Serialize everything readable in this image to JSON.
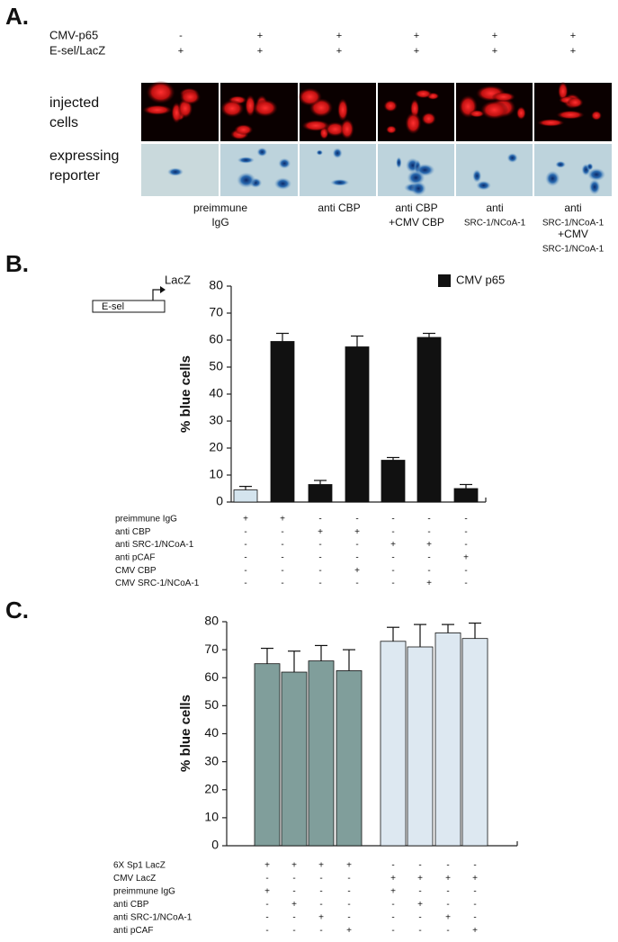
{
  "panel_a": {
    "label": "A.",
    "treatments": [
      {
        "name": "CMV-p65",
        "signs": [
          "-",
          "+",
          "+",
          "+",
          "+",
          "+"
        ]
      },
      {
        "name": "E-sel/LacZ",
        "signs": [
          "+",
          "+",
          "+",
          "+",
          "+",
          "+"
        ]
      }
    ],
    "row_labels": [
      [
        "injected",
        "cells"
      ],
      [
        "expressing",
        "reporter"
      ]
    ],
    "captions": [
      [
        "preimmune",
        "IgG"
      ],
      [
        "anti CBP"
      ],
      [
        "anti CBP",
        "+CMV CBP"
      ],
      [
        "anti",
        "SRC-1/NCoA-1"
      ],
      [
        "anti",
        "SRC-1/NCoA-1",
        "+CMV",
        "SRC-1/NCoA-1"
      ]
    ]
  },
  "chart_data": [
    {
      "type": "bar",
      "panel_label": "B.",
      "promoter": "E-sel",
      "reporter": "LacZ",
      "ylabel": "% blue cells",
      "values": [
        4.5,
        59.5,
        6.5,
        57.5,
        15.5,
        61,
        5
      ],
      "errors": [
        1.3,
        3,
        1.5,
        4,
        1,
        1.5,
        1.5
      ],
      "colors": [
        "#d4e4ee",
        "#111111",
        "#111111",
        "#111111",
        "#111111",
        "#111111",
        "#111111"
      ],
      "legend": {
        "name": "CMV p65",
        "color": "#111111"
      },
      "ylim": [
        0,
        80
      ],
      "yticks": [
        0,
        10,
        20,
        30,
        40,
        50,
        60,
        70,
        80
      ],
      "conditions": [
        {
          "name": "preimmune IgG",
          "signs": [
            "+",
            "+",
            "-",
            "-",
            "-",
            "-",
            "-"
          ]
        },
        {
          "name": "anti CBP",
          "signs": [
            "-",
            "-",
            "+",
            "+",
            "-",
            "-",
            "-"
          ]
        },
        {
          "name": "anti SRC-1/NCoA-1",
          "signs": [
            "-",
            "-",
            "-",
            "-",
            "+",
            "+",
            "-"
          ]
        },
        {
          "name": "anti pCAF",
          "signs": [
            "-",
            "-",
            "-",
            "-",
            "-",
            "-",
            "+"
          ]
        },
        {
          "name": "CMV CBP",
          "signs": [
            "-",
            "-",
            "-",
            "+",
            "-",
            "-",
            "-"
          ]
        },
        {
          "name": "CMV SRC-1/NCoA-1",
          "signs": [
            "-",
            "-",
            "-",
            "-",
            "-",
            "+",
            "-"
          ]
        }
      ]
    },
    {
      "type": "bar",
      "panel_label": "C.",
      "ylabel": "% blue cells",
      "values": [
        65,
        62,
        66,
        62.5,
        73,
        71,
        76,
        74
      ],
      "errors": [
        5.5,
        7.5,
        5.5,
        7.5,
        5,
        8,
        3,
        5.5
      ],
      "colors": [
        "#809e9b",
        "#809e9b",
        "#809e9b",
        "#809e9b",
        "#dde8f1",
        "#dde8f1",
        "#dde8f1",
        "#dde8f1"
      ],
      "ylim": [
        0,
        80
      ],
      "yticks": [
        0,
        10,
        20,
        30,
        40,
        50,
        60,
        70,
        80
      ],
      "conditions": [
        {
          "name": "6X Sp1 LacZ",
          "signs": [
            "+",
            "+",
            "+",
            "+",
            "-",
            "-",
            "-",
            "-"
          ]
        },
        {
          "name": "CMV LacZ",
          "signs": [
            "-",
            "-",
            "-",
            "-",
            "+",
            "+",
            "+",
            "+"
          ]
        },
        {
          "name": "preimmune IgG",
          "signs": [
            "+",
            "-",
            "-",
            "-",
            "+",
            "-",
            "-",
            "-"
          ]
        },
        {
          "name": "anti CBP",
          "signs": [
            "-",
            "+",
            "-",
            "-",
            "-",
            "+",
            "-",
            "-"
          ]
        },
        {
          "name": "anti SRC-1/NCoA-1",
          "signs": [
            "-",
            "-",
            "+",
            "-",
            "-",
            "-",
            "+",
            "-"
          ]
        },
        {
          "name": "anti pCAF",
          "signs": [
            "-",
            "-",
            "-",
            "+",
            "-",
            "-",
            "-",
            "+"
          ]
        }
      ]
    }
  ]
}
